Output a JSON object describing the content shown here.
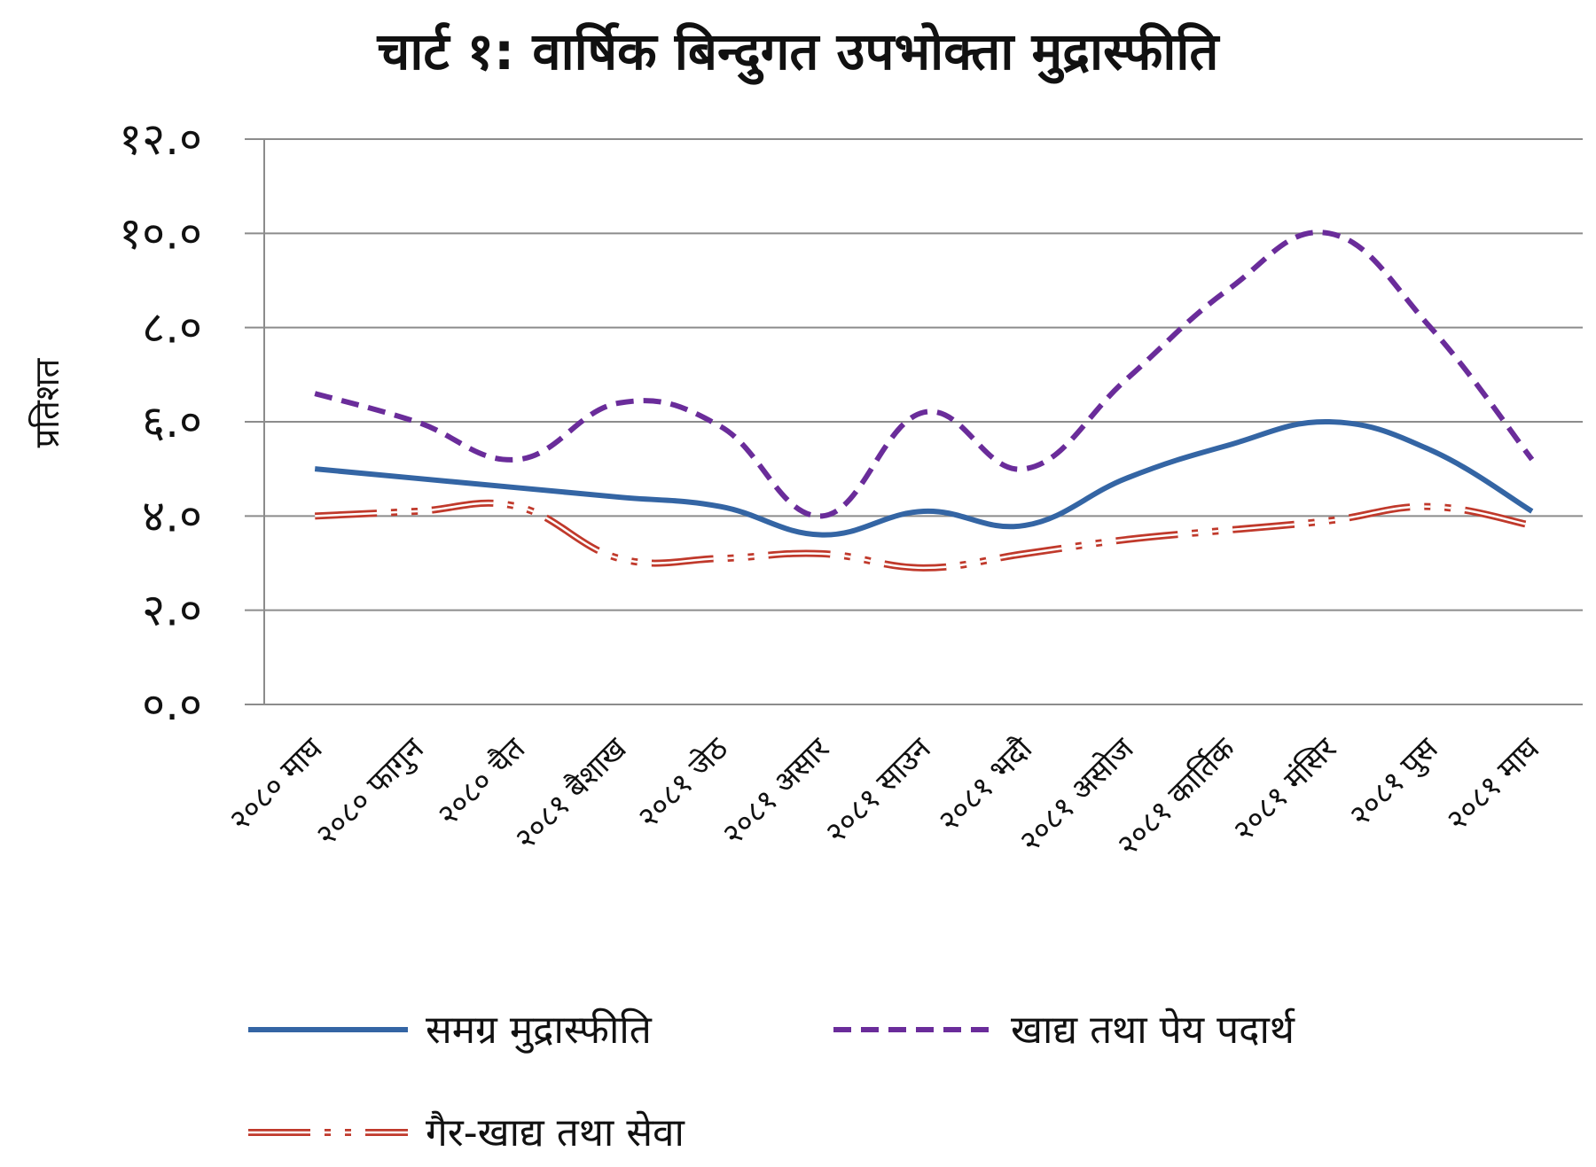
{
  "chart_data": {
    "type": "line",
    "title": "चार्ट १: वार्षिक बिन्दुगत उपभोक्ता मुद्रास्फीति",
    "xlabel": "",
    "ylabel": "प्रतिशत",
    "ylim": [
      0,
      12
    ],
    "yticks": [
      "०.०",
      "२.०",
      "४.०",
      "६.०",
      "८.०",
      "१०.०",
      "१२.०"
    ],
    "grid": true,
    "legend_position": "bottom",
    "categories": [
      "२०८० माघ",
      "२०८० फागुन",
      "२०८० चैत",
      "२०८१ बैशाख",
      "२०८१ जेठ",
      "२०८१ असार",
      "२०८१ साउन",
      "२०८१ भदौ",
      "२०८१ असोज",
      "२०८१ कार्तिक",
      "२०८१ मंसिर",
      "२०८१ पुस",
      "२०८१ माघ"
    ],
    "series": [
      {
        "name": "समग्र मुद्रास्फीति",
        "color": "#3465a4",
        "style": "solid",
        "values": [
          5.0,
          4.8,
          4.6,
          4.4,
          4.2,
          3.6,
          4.1,
          3.8,
          4.8,
          5.5,
          6.0,
          5.4,
          4.1
        ]
      },
      {
        "name": "खाद्य तथा पेय पदार्थ",
        "color": "#6a2c9a",
        "style": "dashed",
        "values": [
          6.6,
          6.0,
          5.2,
          6.4,
          5.9,
          4.0,
          6.2,
          5.0,
          6.9,
          8.8,
          10.0,
          8.0,
          5.2
        ]
      },
      {
        "name": "गैर-खाद्य तथा सेवा",
        "color": "#c0392b",
        "style": "double-dash-dot",
        "values": [
          4.0,
          4.1,
          4.2,
          3.1,
          3.1,
          3.2,
          2.9,
          3.2,
          3.5,
          3.7,
          3.9,
          4.2,
          3.8
        ]
      }
    ]
  }
}
